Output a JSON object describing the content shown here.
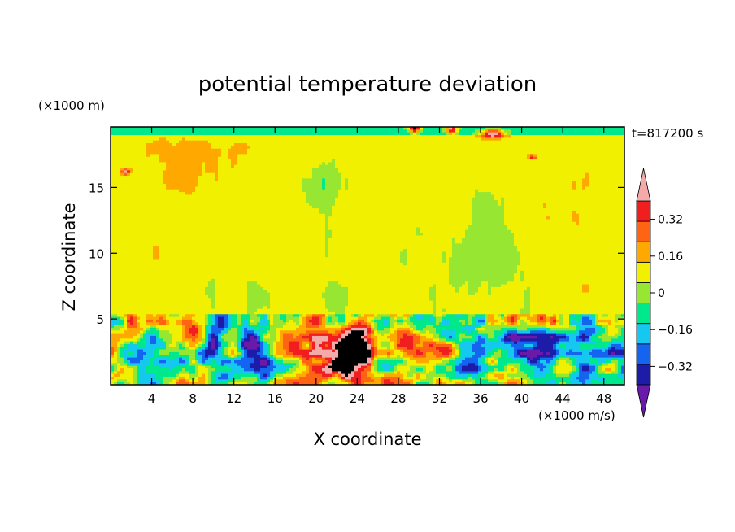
{
  "chart_data": {
    "type": "heatmap",
    "title": "potential temperature deviation",
    "xlabel": "X coordinate",
    "ylabel": "Z coordinate",
    "x_unit": "(×1000 m/s)",
    "y_unit": "(×1000 m)",
    "time_label": "t=817200 s",
    "xlim": [
      0,
      50
    ],
    "ylim": [
      0,
      19.6
    ],
    "x_ticks": [
      4,
      8,
      12,
      16,
      20,
      24,
      28,
      32,
      36,
      40,
      44,
      48
    ],
    "x_tick_labels": [
      "4",
      "8",
      "12",
      "16",
      "20",
      "24",
      "28",
      "32",
      "36",
      "40",
      "44",
      "48"
    ],
    "y_ticks": [
      5,
      10,
      15
    ],
    "y_tick_labels": [
      "5",
      "10",
      "15"
    ],
    "colorbar": {
      "levels": [
        -0.4,
        -0.32,
        -0.24,
        -0.16,
        -0.08,
        0,
        0.08,
        0.16,
        0.24,
        0.32,
        0.4
      ],
      "tick_values": [
        0.32,
        0.16,
        0,
        -0.16,
        -0.32
      ],
      "tick_labels": [
        "0.32",
        "0.16",
        "0",
        "−0.16",
        "−0.32"
      ],
      "colors": [
        "#6a1aa8",
        "#1c1ca8",
        "#1464f0",
        "#14c8f0",
        "#00e88c",
        "#96e632",
        "#f0f000",
        "#ffa800",
        "#ff6414",
        "#f01e1e",
        "#f5aaaa"
      ],
      "under_color": "#6a1aa8",
      "over_color": "#f5aaaa"
    }
  }
}
